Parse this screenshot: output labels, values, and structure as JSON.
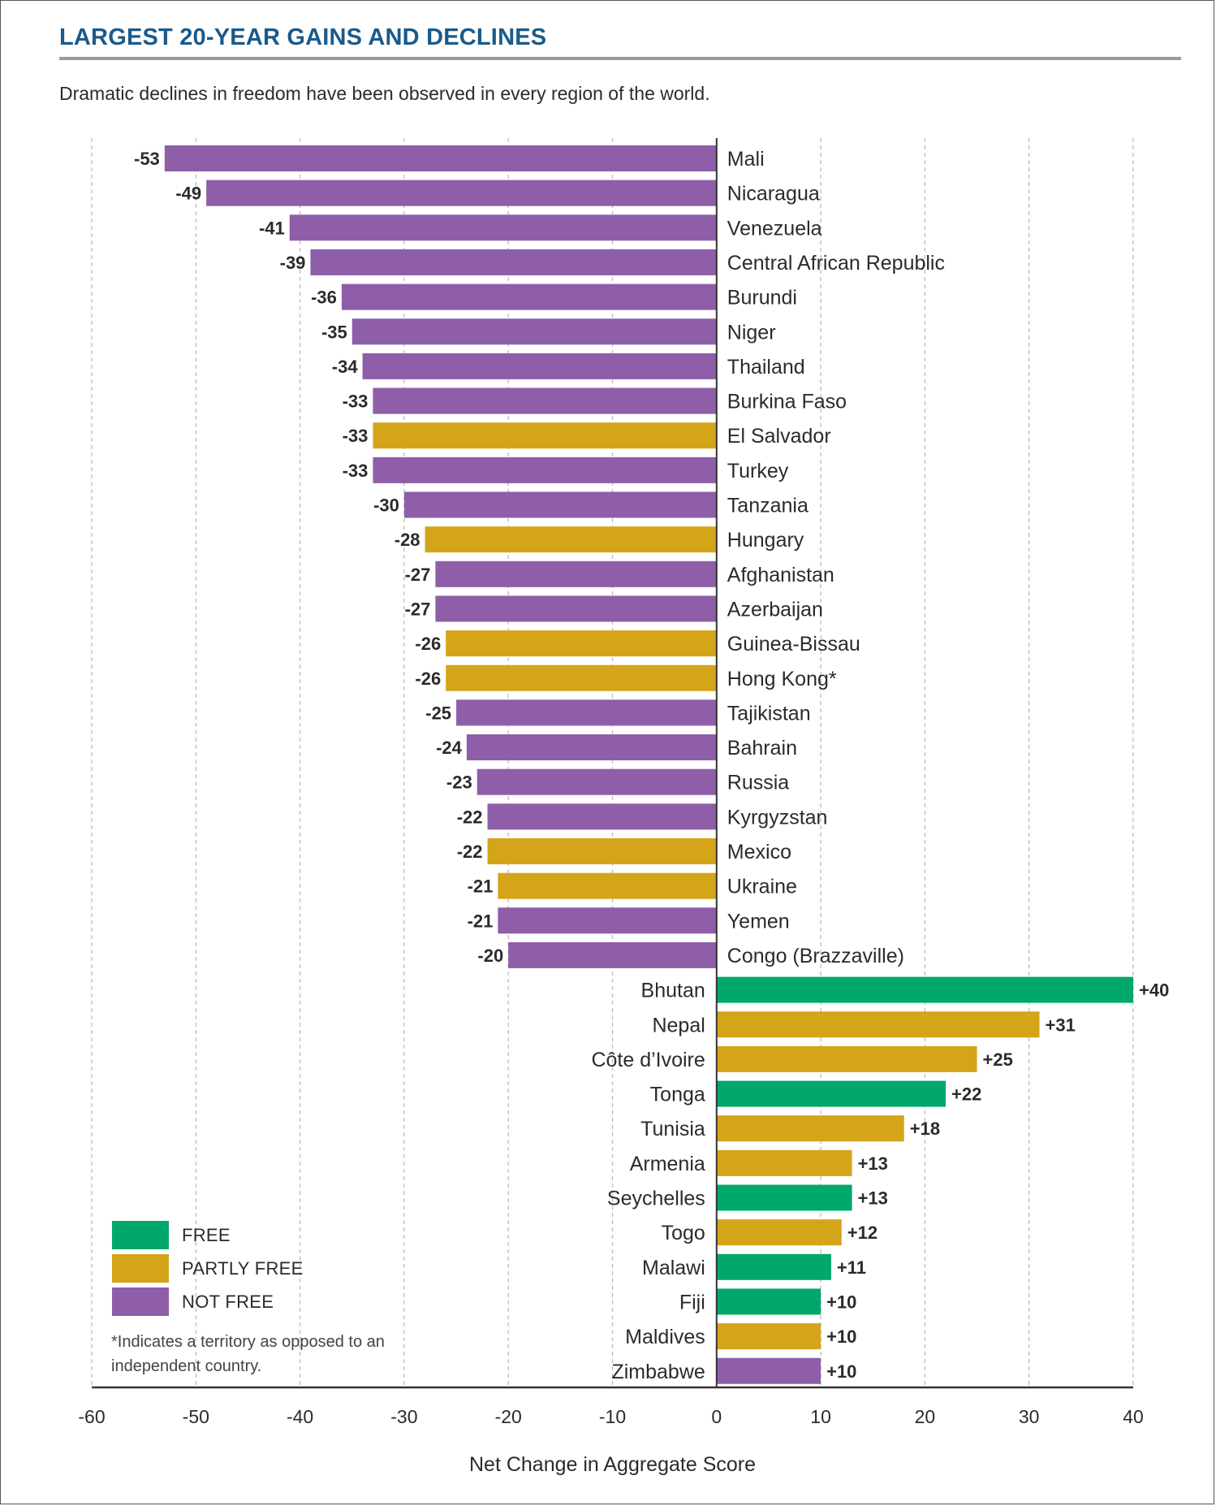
{
  "header": {
    "title": "LARGEST 20-YEAR GAINS AND DECLINES",
    "subtitle": "Dramatic declines in freedom have been observed in every region of the world."
  },
  "legend": {
    "items": [
      {
        "label": "FREE",
        "status": "free"
      },
      {
        "label": "PARTLY FREE",
        "status": "partly_free"
      },
      {
        "label": "NOT FREE",
        "status": "not_free"
      }
    ],
    "footnote": "*Indicates a territory as opposed to an independent country."
  },
  "colors": {
    "free": "#00a86b",
    "partly_free": "#d4a419",
    "not_free": "#8e5ea8",
    "title": "#1a5a8a"
  },
  "chart_data": {
    "type": "bar",
    "orientation": "horizontal",
    "title": "LARGEST 20-YEAR GAINS AND DECLINES",
    "subtitle": "Dramatic declines in freedom have been observed in every region of the world.",
    "xlabel": "Net Change in Aggregate Score",
    "ylabel": "",
    "xlim": [
      -60,
      40
    ],
    "xticks": [
      -60,
      -50,
      -40,
      -30,
      -20,
      -10,
      0,
      10,
      20,
      30,
      40
    ],
    "grid": true,
    "legend_position": "bottom-left",
    "bars": [
      {
        "country": "Mali",
        "value": -53,
        "label": "-53",
        "status": "not_free"
      },
      {
        "country": "Nicaragua",
        "value": -49,
        "label": "-49",
        "status": "not_free"
      },
      {
        "country": "Venezuela",
        "value": -41,
        "label": "-41",
        "status": "not_free"
      },
      {
        "country": "Central African Republic",
        "value": -39,
        "label": "-39",
        "status": "not_free"
      },
      {
        "country": "Burundi",
        "value": -36,
        "label": "-36",
        "status": "not_free"
      },
      {
        "country": "Niger",
        "value": -35,
        "label": "-35",
        "status": "not_free"
      },
      {
        "country": "Thailand",
        "value": -34,
        "label": "-34",
        "status": "not_free"
      },
      {
        "country": "Burkina Faso",
        "value": -33,
        "label": "-33",
        "status": "not_free"
      },
      {
        "country": "El Salvador",
        "value": -33,
        "label": "-33",
        "status": "partly_free"
      },
      {
        "country": "Turkey",
        "value": -33,
        "label": "-33",
        "status": "not_free"
      },
      {
        "country": "Tanzania",
        "value": -30,
        "label": "-30",
        "status": "not_free"
      },
      {
        "country": "Hungary",
        "value": -28,
        "label": "-28",
        "status": "partly_free"
      },
      {
        "country": "Afghanistan",
        "value": -27,
        "label": "-27",
        "status": "not_free"
      },
      {
        "country": "Azerbaijan",
        "value": -27,
        "label": "-27",
        "status": "not_free"
      },
      {
        "country": "Guinea-Bissau",
        "value": -26,
        "label": "-26",
        "status": "partly_free"
      },
      {
        "country": "Hong Kong*",
        "value": -26,
        "label": "-26",
        "status": "partly_free"
      },
      {
        "country": "Tajikistan",
        "value": -25,
        "label": "-25",
        "status": "not_free"
      },
      {
        "country": "Bahrain",
        "value": -24,
        "label": "-24",
        "status": "not_free"
      },
      {
        "country": "Russia",
        "value": -23,
        "label": "-23",
        "status": "not_free"
      },
      {
        "country": "Kyrgyzstan",
        "value": -22,
        "label": "-22",
        "status": "not_free"
      },
      {
        "country": "Mexico",
        "value": -22,
        "label": "-22",
        "status": "partly_free"
      },
      {
        "country": "Ukraine",
        "value": -21,
        "label": "-21",
        "status": "partly_free"
      },
      {
        "country": "Yemen",
        "value": -21,
        "label": "-21",
        "status": "not_free"
      },
      {
        "country": "Congo (Brazzaville)",
        "value": -20,
        "label": "-20",
        "status": "not_free"
      },
      {
        "country": "Bhutan",
        "value": 40,
        "label": "+40",
        "status": "free"
      },
      {
        "country": "Nepal",
        "value": 31,
        "label": "+31",
        "status": "partly_free"
      },
      {
        "country": "Côte d’Ivoire",
        "value": 25,
        "label": "+25",
        "status": "partly_free"
      },
      {
        "country": "Tonga",
        "value": 22,
        "label": "+22",
        "status": "free"
      },
      {
        "country": "Tunisia",
        "value": 18,
        "label": "+18",
        "status": "partly_free"
      },
      {
        "country": "Armenia",
        "value": 13,
        "label": "+13",
        "status": "partly_free"
      },
      {
        "country": "Seychelles",
        "value": 13,
        "label": "+13",
        "status": "free"
      },
      {
        "country": "Togo",
        "value": 12,
        "label": "+12",
        "status": "partly_free"
      },
      {
        "country": "Malawi",
        "value": 11,
        "label": "+11",
        "status": "free"
      },
      {
        "country": "Fiji",
        "value": 10,
        "label": "+10",
        "status": "free"
      },
      {
        "country": "Maldives",
        "value": 10,
        "label": "+10",
        "status": "partly_free"
      },
      {
        "country": "Zimbabwe",
        "value": 10,
        "label": "+10",
        "status": "not_free"
      }
    ]
  }
}
